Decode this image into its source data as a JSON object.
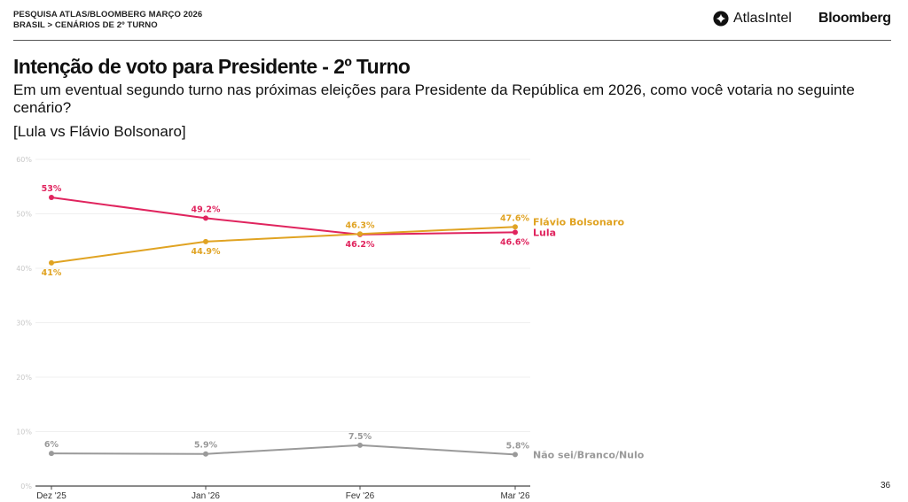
{
  "header": {
    "line1": "PESQUISA ATLAS/BLOOMBERG MARÇO 2026",
    "line2": "BRASIL > CENÁRIOS DE 2º TURNO",
    "brand_atlas": "AtlasIntel",
    "brand_atlas_icon": "atlasintel-logo-icon",
    "brand_bloomberg": "Bloomberg"
  },
  "title": "Intenção de voto para Presidente - 2º Turno",
  "subtitle": "Em um eventual segundo turno nas próximas eleições para Presidente da República em 2026, como você votaria no seguinte cenário?",
  "scenario": "[Lula vs Flávio Bolsonaro]",
  "page_number": "36",
  "colors": {
    "lula": "#e0245e",
    "flavio": "#e0a322",
    "nulo": "#9a9a9a",
    "grid": "#efefef",
    "axis": "#444444"
  },
  "chart_data": {
    "type": "line",
    "title": "Intenção de voto para Presidente - 2º Turno",
    "xlabel": "",
    "ylabel": "",
    "categories": [
      "Dez '25",
      "Jan '26",
      "Fev '26",
      "Mar '26"
    ],
    "ylim": [
      0,
      60
    ],
    "yticks": [
      0,
      10,
      20,
      30,
      40,
      50,
      60
    ],
    "ytick_labels": [
      "0%",
      "10%",
      "20%",
      "30%",
      "40%",
      "50%",
      "60%"
    ],
    "grid": true,
    "legend": "inline-right",
    "series": [
      {
        "key": "lula",
        "name": "Lula",
        "values": [
          53,
          49.2,
          46.2,
          46.6
        ],
        "labels": [
          "53%",
          "49.2%",
          "46.2%",
          "46.6%"
        ],
        "label_pos": [
          "above",
          "above",
          "below",
          "below"
        ]
      },
      {
        "key": "flavio",
        "name": "Flávio Bolsonaro",
        "values": [
          41,
          44.9,
          46.3,
          47.6
        ],
        "labels": [
          "41%",
          "44.9%",
          "46.3%",
          "47.6%"
        ],
        "label_pos": [
          "below",
          "below",
          "above",
          "above"
        ]
      },
      {
        "key": "nulo",
        "name": "Não sei/Branco/Nulo",
        "values": [
          6,
          5.9,
          7.5,
          5.8
        ],
        "labels": [
          "6%",
          "5.9%",
          "7.5%",
          "5.8%"
        ],
        "label_pos": [
          "above",
          "above",
          "above",
          "above"
        ]
      }
    ]
  }
}
